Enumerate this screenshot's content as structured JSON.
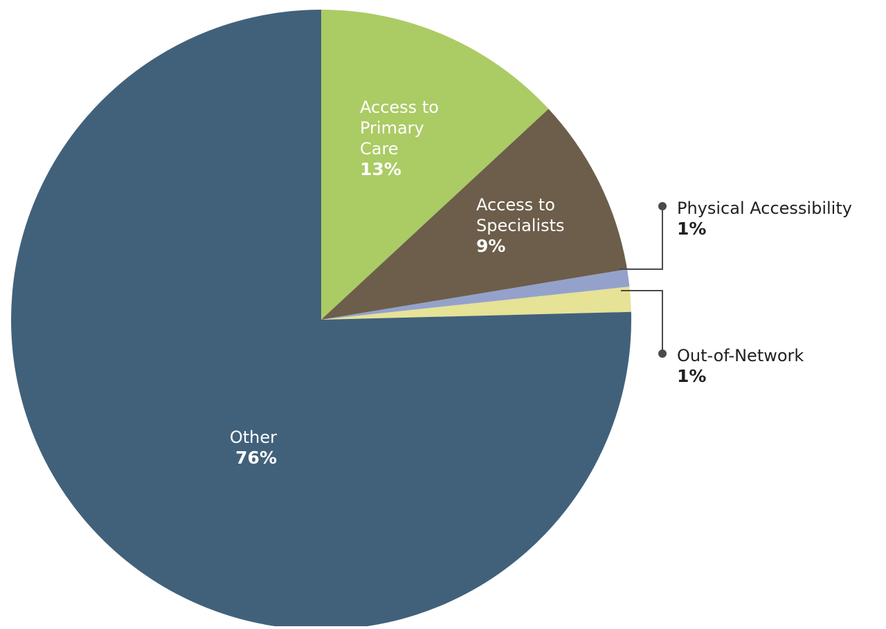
{
  "chart_data": {
    "type": "pie",
    "start_angle_deg": 0,
    "direction": "clockwise",
    "slices": [
      {
        "name": [
          "Access to",
          "Primary",
          "Care"
        ],
        "label": "13%",
        "value": 13.1,
        "color": "#abcb64",
        "text_color": "#ffffff",
        "label_mode": "inside"
      },
      {
        "name": [
          "Access to",
          "Specialists"
        ],
        "label": "9%",
        "value": 9.3,
        "color": "#6c5e4a",
        "text_color": "#ffffff",
        "label_mode": "inside"
      },
      {
        "name": [
          "Physical Accessibility"
        ],
        "label": "1%",
        "value": 0.9,
        "color": "#94a2cb",
        "text_color": "#231f20",
        "label_mode": "callout"
      },
      {
        "name": [
          "Out-of-Network"
        ],
        "label": "1%",
        "value": 1.3,
        "color": "#e6e296",
        "text_color": "#231f20",
        "label_mode": "callout"
      },
      {
        "name": [
          "Other"
        ],
        "label": "76%",
        "value": 75.4,
        "color": "#41617b",
        "text_color": "#ffffff",
        "label_mode": "inside"
      }
    ],
    "leader_color": "#4a4a4a"
  }
}
